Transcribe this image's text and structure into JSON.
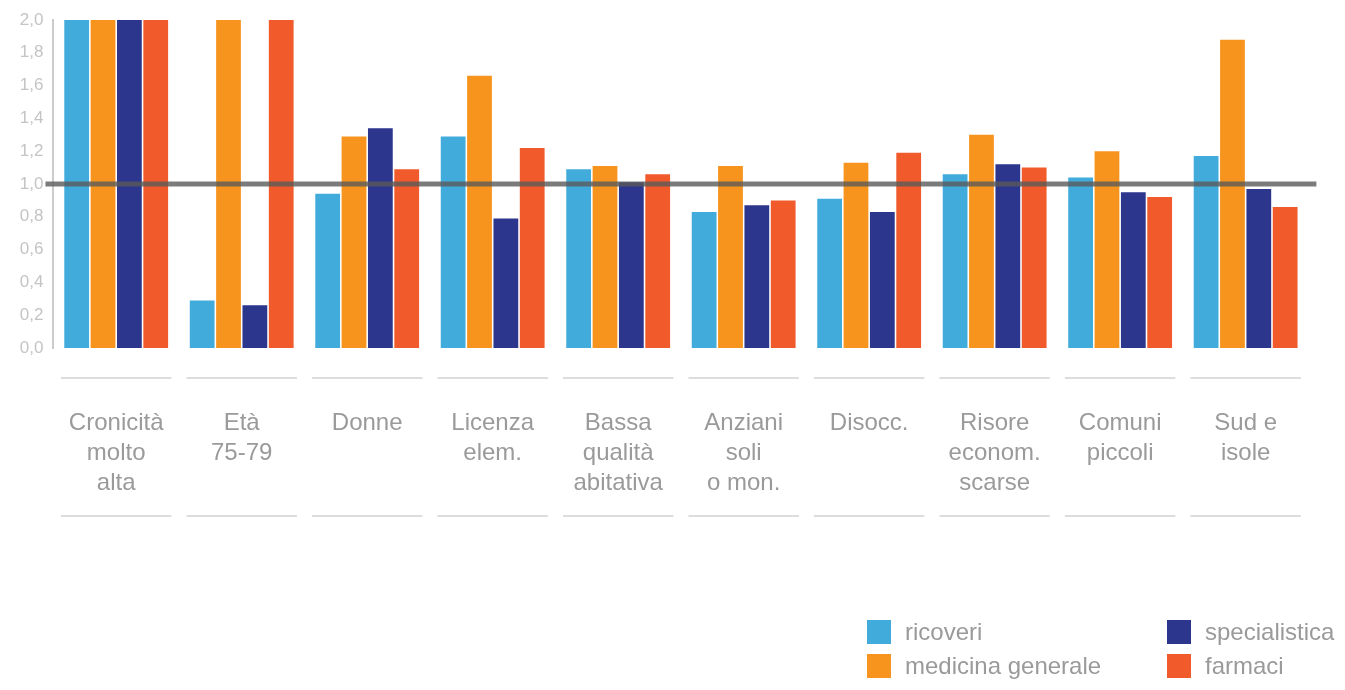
{
  "chart_data": {
    "type": "bar",
    "categories": [
      "Cronicità\nmolto\nalta",
      "Età\n75-79",
      "Donne",
      "Licenza\nelem.",
      "Bassa\nqualità\nabitativa",
      "Anziani\nsoli\no mon.",
      "Disocc.",
      "Risore\neconom.\nscarse",
      "Comuni\npiccoli",
      "Sud e\nisole"
    ],
    "series": [
      {
        "name": "ricoveri",
        "color": "#41acdb",
        "values": [
          2.0,
          0.29,
          0.94,
          1.29,
          1.09,
          0.83,
          0.91,
          1.06,
          1.04,
          1.17
        ]
      },
      {
        "name": "medicina generale",
        "color": "#f7941d",
        "values": [
          2.0,
          2.0,
          1.29,
          1.66,
          1.11,
          1.11,
          1.13,
          1.3,
          1.2,
          1.88
        ]
      },
      {
        "name": "specialistica",
        "color": "#2b368c",
        "values": [
          2.0,
          0.26,
          1.34,
          0.79,
          1.01,
          0.87,
          0.83,
          1.12,
          0.95,
          0.97
        ]
      },
      {
        "name": "farmaci",
        "color": "#f15a2b",
        "values": [
          2.0,
          2.0,
          1.09,
          1.22,
          1.06,
          0.9,
          1.19,
          1.1,
          0.92,
          0.86
        ]
      }
    ],
    "ylim": [
      0,
      2
    ],
    "yticks": [
      {
        "value": 0,
        "label": "0,0"
      },
      {
        "value": 0.2,
        "label": "0,2"
      },
      {
        "value": 0.4,
        "label": "0,4"
      },
      {
        "value": 0.6,
        "label": "0,6"
      },
      {
        "value": 0.8,
        "label": "0,8"
      },
      {
        "value": 1,
        "label": "1,0"
      },
      {
        "value": 1.2,
        "label": "1,2"
      },
      {
        "value": 1.4,
        "label": "1,4"
      },
      {
        "value": 1.6,
        "label": "1,6"
      },
      {
        "value": 1.8,
        "label": "1,8"
      },
      {
        "value": 2,
        "label": "2,0"
      }
    ],
    "ref_lines": [
      {
        "axis": "y",
        "value": 1,
        "color": "#5a5a5a"
      }
    ],
    "grid": false,
    "legend": "bottom right"
  }
}
